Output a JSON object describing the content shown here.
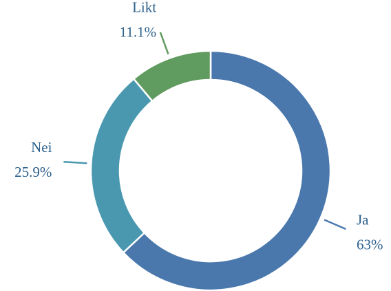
{
  "chart_data": {
    "type": "donut",
    "categories": [
      "Ja",
      "Nei",
      "Likt"
    ],
    "values": [
      63,
      25.9,
      11.1
    ],
    "value_labels": [
      "63%",
      "25.9%",
      "11.1%"
    ],
    "colors": [
      "#4a78ad",
      "#4a98b0",
      "#609b5f"
    ]
  }
}
